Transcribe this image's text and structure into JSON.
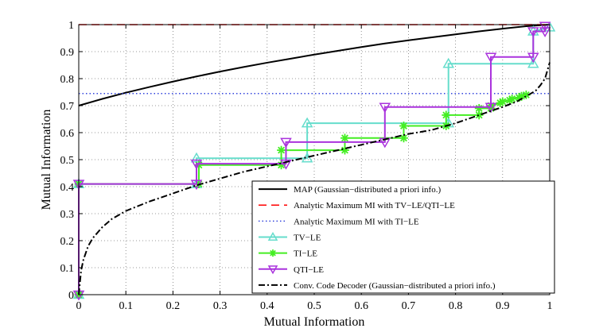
{
  "chart_data": {
    "type": "line",
    "title": "",
    "xlabel": "Mutual Information",
    "ylabel": "Mutual Information",
    "xlim": [
      0,
      1
    ],
    "ylim": [
      0,
      1
    ],
    "grid": true,
    "xticks": [
      "0",
      "0.1",
      "0.2",
      "0.3",
      "0.4",
      "0.5",
      "0.6",
      "0.7",
      "0.8",
      "0.9",
      "1"
    ],
    "yticks": [
      "0",
      "0.1",
      "0.2",
      "0.3",
      "0.4",
      "0.5",
      "0.6",
      "0.7",
      "0.8",
      "0.9",
      "1"
    ],
    "legend_position": "bottom-right",
    "series": [
      {
        "name": "MAP (Gaussian−distributed a priori info.)",
        "color": "#000000",
        "style": "solid",
        "marker": "none",
        "x": [
          0,
          0.05,
          0.1,
          0.15,
          0.2,
          0.25,
          0.3,
          0.35,
          0.4,
          0.45,
          0.5,
          0.55,
          0.6,
          0.65,
          0.7,
          0.75,
          0.8,
          0.85,
          0.9,
          0.95,
          1.0
        ],
        "y": [
          0.7,
          0.725,
          0.748,
          0.769,
          0.789,
          0.808,
          0.826,
          0.843,
          0.859,
          0.874,
          0.889,
          0.903,
          0.917,
          0.93,
          0.942,
          0.953,
          0.964,
          0.975,
          0.985,
          0.994,
          1.0
        ]
      },
      {
        "name": "Analytic Maximum MI with TV−LE/QTI−LE",
        "color": "#ff0000",
        "style": "dashed",
        "marker": "none",
        "x": [
          0,
          1
        ],
        "y": [
          1.0,
          1.0
        ]
      },
      {
        "name": "Analytic Maximum MI with TI−LE",
        "color": "#3344dd",
        "style": "dotted",
        "marker": "none",
        "x": [
          0,
          1
        ],
        "y": [
          0.745,
          0.745
        ]
      },
      {
        "name": "TV−LE",
        "color": "#66ddcc",
        "style": "solid",
        "marker": "triangle-up",
        "x": [
          0,
          0,
          0.25,
          0.25,
          0.485,
          0.485,
          0.785,
          0.785,
          0.965,
          0.965,
          1.0
        ],
        "y": [
          0,
          0.41,
          0.41,
          0.505,
          0.505,
          0.635,
          0.635,
          0.855,
          0.855,
          0.975,
          0.99
        ]
      },
      {
        "name": "TI−LE",
        "color": "#44ee22",
        "style": "solid",
        "marker": "star",
        "x": [
          0,
          0,
          0.255,
          0.255,
          0.43,
          0.43,
          0.565,
          0.565,
          0.69,
          0.69,
          0.78,
          0.78,
          0.85,
          0.85,
          0.875,
          0.875,
          0.895,
          0.9,
          0.915,
          0.92,
          0.935,
          0.94,
          0.95
        ],
        "y": [
          0,
          0.41,
          0.41,
          0.48,
          0.48,
          0.535,
          0.535,
          0.58,
          0.58,
          0.625,
          0.625,
          0.665,
          0.665,
          0.69,
          0.69,
          0.7,
          0.71,
          0.715,
          0.72,
          0.725,
          0.73,
          0.735,
          0.74
        ]
      },
      {
        "name": "QTI−LE",
        "color": "#aa33dd",
        "style": "solid",
        "marker": "triangle-down",
        "x": [
          0,
          0,
          0.25,
          0.25,
          0.44,
          0.44,
          0.65,
          0.65,
          0.875,
          0.875,
          0.965,
          0.965,
          0.99,
          0.99
        ],
        "y": [
          0,
          0.41,
          0.41,
          0.485,
          0.485,
          0.565,
          0.565,
          0.695,
          0.695,
          0.88,
          0.88,
          0.975,
          0.975,
          0.995
        ]
      },
      {
        "name": "Conv. Code Decoder (Gaussian−distributed a priori info.)",
        "color": "#000000",
        "style": "dashdot",
        "marker": "none",
        "x": [
          0,
          0.005,
          0.01,
          0.02,
          0.03,
          0.05,
          0.07,
          0.1,
          0.15,
          0.2,
          0.25,
          0.3,
          0.35,
          0.4,
          0.45,
          0.5,
          0.55,
          0.6,
          0.65,
          0.7,
          0.75,
          0.8,
          0.85,
          0.9,
          0.93,
          0.95,
          0.97,
          0.98,
          0.99,
          1.0
        ],
        "y": [
          0,
          0.09,
          0.13,
          0.18,
          0.21,
          0.25,
          0.28,
          0.31,
          0.345,
          0.375,
          0.405,
          0.43,
          0.455,
          0.475,
          0.495,
          0.515,
          0.535,
          0.555,
          0.575,
          0.595,
          0.61,
          0.635,
          0.665,
          0.695,
          0.715,
          0.735,
          0.755,
          0.775,
          0.8,
          0.86
        ]
      }
    ]
  }
}
